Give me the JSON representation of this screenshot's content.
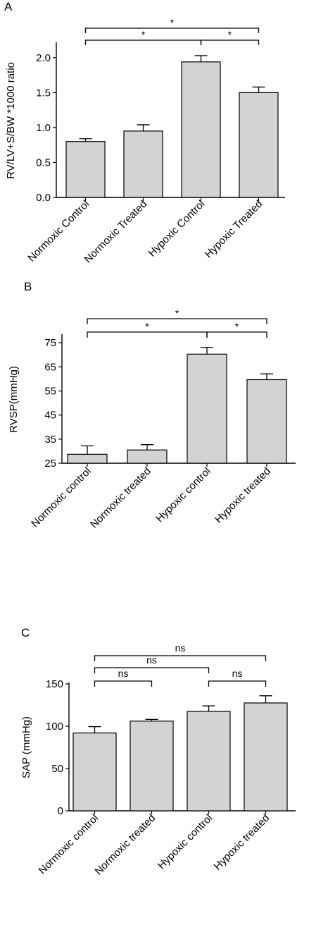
{
  "chart_data": [
    {
      "panel": "A",
      "type": "bar",
      "ylabel": "RV/LV+S/BW *1000 ratio",
      "ylim": [
        0,
        2.2
      ],
      "yticks": [
        0.0,
        0.5,
        1.0,
        1.5,
        2.0
      ],
      "ytick_labels": [
        "0.0",
        "0.5",
        "1.0",
        "1.5",
        "2.0"
      ],
      "categories": [
        "Normoxic Control",
        "Normoxic Treated",
        "Hypoxic Control",
        "Hypoxic Treated"
      ],
      "values": [
        0.8,
        0.95,
        1.94,
        1.5
      ],
      "errors": [
        0.04,
        0.09,
        0.09,
        0.08
      ],
      "bar_color": "#d3d3d3",
      "significance": [
        {
          "from": 0,
          "to": 2,
          "label": "*"
        },
        {
          "from": 2,
          "to": 3,
          "label": "*"
        },
        {
          "from": 0,
          "to": 3,
          "label": "*"
        }
      ]
    },
    {
      "panel": "B",
      "type": "bar",
      "ylabel": "RVSP(mmHg)",
      "ylim": [
        25,
        78
      ],
      "yticks": [
        25,
        35,
        45,
        55,
        65,
        75
      ],
      "ytick_labels": [
        "25",
        "35",
        "45",
        "55",
        "65",
        "75"
      ],
      "categories": [
        "Normoxic control",
        "Normoxic treated",
        "Hypoxic control",
        "Hypoxic treated"
      ],
      "values": [
        28.7,
        30.5,
        70.3,
        59.7
      ],
      "errors": [
        3.5,
        2.2,
        2.8,
        2.4
      ],
      "bar_color": "#d3d3d3",
      "significance": [
        {
          "from": 0,
          "to": 2,
          "label": "*"
        },
        {
          "from": 2,
          "to": 3,
          "label": "*"
        },
        {
          "from": 0,
          "to": 3,
          "label": "*"
        }
      ]
    },
    {
      "panel": "C",
      "type": "bar",
      "ylabel": "SAP (mmHg)",
      "ylim": [
        0,
        150
      ],
      "yticks": [
        0,
        50,
        100,
        150
      ],
      "ytick_labels": [
        "0",
        "50",
        "100",
        "150"
      ],
      "categories": [
        "Normoxic control",
        "Normoxic treated",
        "Hypoxic control",
        "Hypoxic treated"
      ],
      "values": [
        92,
        106,
        117.5,
        127.5
      ],
      "errors": [
        7.5,
        2,
        6.5,
        8.5
      ],
      "bar_color": "#d3d3d3",
      "significance": [
        {
          "from": 0,
          "to": 1,
          "label": "ns"
        },
        {
          "from": 0,
          "to": 2,
          "label": "ns"
        },
        {
          "from": 2,
          "to": 3,
          "label": "ns"
        },
        {
          "from": 0,
          "to": 3,
          "label": "ns"
        }
      ]
    }
  ]
}
